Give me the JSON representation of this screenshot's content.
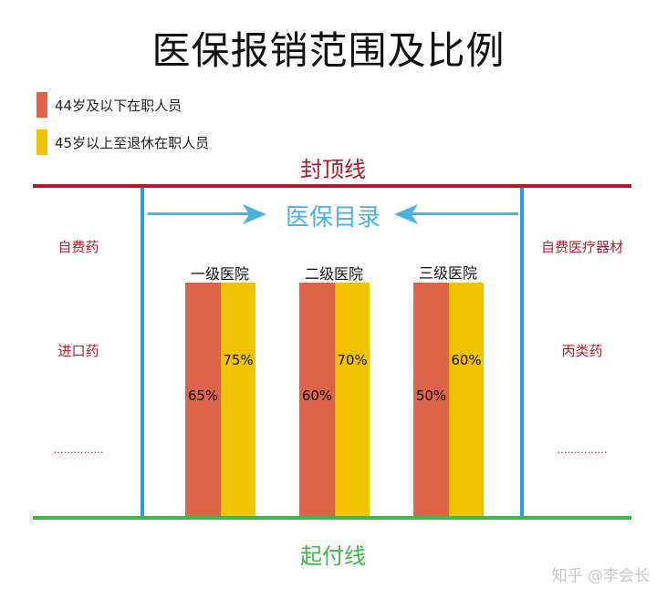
{
  "title": "医保报销范围及比例",
  "legend": [
    {
      "label": "44岁及以下在职人员",
      "color": "#dd6448"
    },
    {
      "label": "45岁以上至退休在职人员",
      "color": "#f1c200"
    }
  ],
  "cap_line": {
    "label": "封顶线",
    "color": "#a81c2a"
  },
  "deductible_line": {
    "label": "起付线",
    "color": "#3cb94a"
  },
  "catalog": {
    "label": "医保目录",
    "color": "#4ab4df"
  },
  "left_excluded": [
    "自费药",
    "进口药",
    "……………"
  ],
  "right_excluded": [
    "自费医疗器材",
    "丙类药",
    "……………"
  ],
  "chart_data": {
    "type": "bar",
    "categories": [
      "一级医院",
      "二级医院",
      "三级医院"
    ],
    "series": [
      {
        "name": "44岁及以下在职人员",
        "values": [
          65,
          60,
          50
        ],
        "labels": [
          "65%",
          "60%",
          "50%"
        ]
      },
      {
        "name": "45岁以上至退休在职人员",
        "values": [
          75,
          70,
          60
        ],
        "labels": [
          "75%",
          "70%",
          "60%"
        ]
      }
    ]
  },
  "watermark": "知乎 @李会长"
}
